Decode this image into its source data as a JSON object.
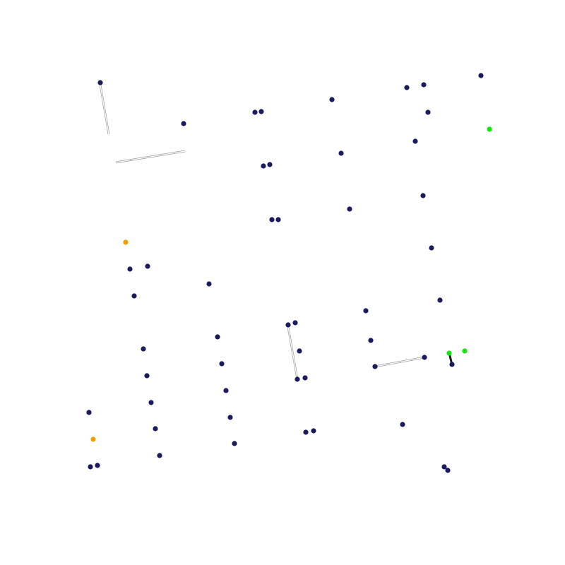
{
  "palette": {
    "background": "#ffffff",
    "node_default": "#1c1a5e",
    "node_orange": "#f0a000",
    "node_green": "#11e611",
    "edge_light": "#9a9a9a",
    "edge_dark": "#1a1a1a"
  },
  "diagram": {
    "nodes": [
      {
        "id": "n1",
        "color": "node_default"
      },
      {
        "id": "n2",
        "color": "node_default"
      },
      {
        "id": "n3",
        "color": "node_default"
      },
      {
        "id": "n4",
        "color": "node_default"
      },
      {
        "id": "n5",
        "color": "node_default"
      },
      {
        "id": "n6",
        "color": "node_default"
      },
      {
        "id": "n7",
        "color": "node_default"
      },
      {
        "id": "n8",
        "color": "node_default"
      },
      {
        "id": "n9",
        "color": "node_green"
      },
      {
        "id": "n10",
        "color": "node_default"
      },
      {
        "id": "n11",
        "color": "node_default"
      },
      {
        "id": "n12",
        "color": "node_default"
      },
      {
        "id": "n13",
        "color": "node_default"
      },
      {
        "id": "n14",
        "color": "node_default"
      },
      {
        "id": "n15",
        "color": "node_default"
      },
      {
        "id": "n16",
        "color": "node_default"
      },
      {
        "id": "n17",
        "color": "node_default"
      },
      {
        "id": "n18",
        "color": "node_orange"
      },
      {
        "id": "n19",
        "color": "node_default"
      },
      {
        "id": "n20",
        "color": "node_default"
      },
      {
        "id": "n21",
        "color": "node_default"
      },
      {
        "id": "n22",
        "color": "node_default"
      },
      {
        "id": "n23",
        "color": "node_default"
      },
      {
        "id": "n24",
        "color": "node_default"
      },
      {
        "id": "n25",
        "color": "node_default"
      },
      {
        "id": "n26",
        "color": "node_default"
      },
      {
        "id": "n27",
        "color": "node_default"
      },
      {
        "id": "n28",
        "color": "node_default"
      },
      {
        "id": "n29",
        "color": "node_default"
      },
      {
        "id": "n30",
        "color": "node_default"
      },
      {
        "id": "n31",
        "color": "node_default"
      },
      {
        "id": "n32",
        "color": "node_default"
      },
      {
        "id": "n33",
        "color": "node_default"
      },
      {
        "id": "n34",
        "color": "node_green"
      },
      {
        "id": "n35",
        "color": "node_default"
      },
      {
        "id": "n36",
        "color": "node_green"
      },
      {
        "id": "n37",
        "color": "node_default"
      },
      {
        "id": "n38",
        "color": "node_default"
      },
      {
        "id": "n39",
        "color": "node_default"
      },
      {
        "id": "n40",
        "color": "node_default"
      },
      {
        "id": "n41",
        "color": "node_default"
      },
      {
        "id": "n42",
        "color": "node_default"
      },
      {
        "id": "n43",
        "color": "node_default"
      },
      {
        "id": "n44",
        "color": "node_default"
      },
      {
        "id": "n45",
        "color": "node_default"
      },
      {
        "id": "n46",
        "color": "node_default"
      },
      {
        "id": "n47",
        "color": "node_default"
      },
      {
        "id": "n48",
        "color": "node_default"
      },
      {
        "id": "n49",
        "color": "node_default"
      },
      {
        "id": "n50",
        "color": "node_orange"
      },
      {
        "id": "n51",
        "color": "node_default"
      },
      {
        "id": "n52",
        "color": "node_default"
      },
      {
        "id": "n53",
        "color": "node_default"
      },
      {
        "id": "n54",
        "color": "node_default"
      },
      {
        "id": "n55",
        "color": "node_default"
      },
      {
        "id": "n56",
        "color": "node_default"
      }
    ],
    "edges": [
      {
        "style": "double_light"
      },
      {
        "style": "double_light"
      },
      {
        "style": "double_light"
      },
      {
        "style": "double_light"
      },
      {
        "style": "thick_dark"
      }
    ]
  }
}
